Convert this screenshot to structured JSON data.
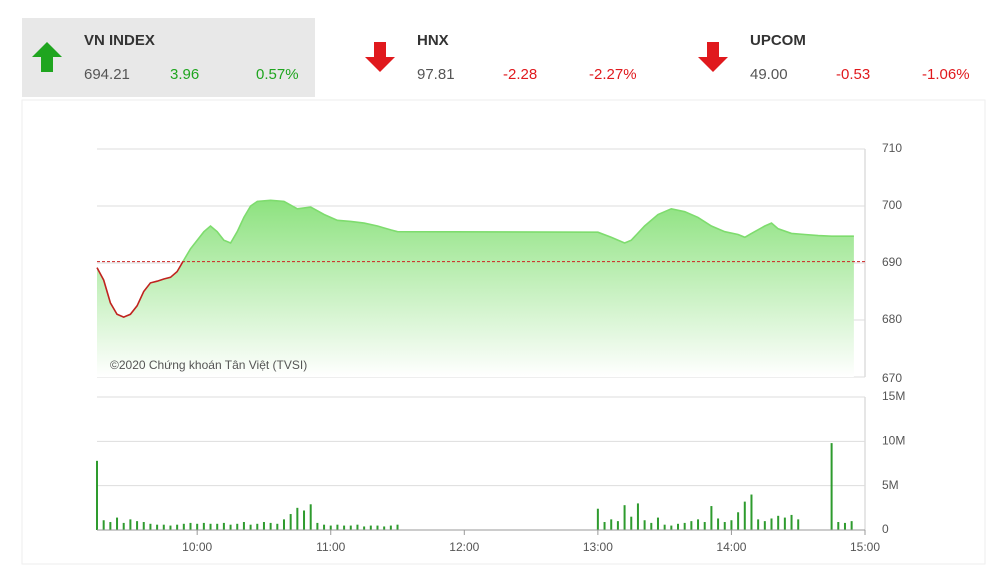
{
  "indices": [
    {
      "name": "VN INDEX",
      "value": "694.21",
      "change": "3.96",
      "percent": "0.57%",
      "direction": "up",
      "highlighted": true
    },
    {
      "name": "HNX",
      "value": "97.81",
      "change": "-2.28",
      "percent": "-2.27%",
      "direction": "down",
      "highlighted": false
    },
    {
      "name": "UPCOM",
      "value": "49.00",
      "change": "-0.53",
      "percent": "-1.06%",
      "direction": "down",
      "highlighted": false
    }
  ],
  "colors": {
    "up": "#1fa51f",
    "down": "#e0191d"
  },
  "chart_data": [
    {
      "type": "area",
      "annotation": "©2020 Chứng khoán Tân Việt (TVSI)",
      "x": [
        "09:15",
        "09:18",
        "09:21",
        "09:24",
        "09:27",
        "09:30",
        "09:33",
        "09:36",
        "09:39",
        "09:42",
        "09:45",
        "09:48",
        "09:51",
        "09:54",
        "09:57",
        "10:00",
        "10:03",
        "10:06",
        "10:09",
        "10:12",
        "10:15",
        "10:18",
        "10:21",
        "10:24",
        "10:27",
        "10:33",
        "10:39",
        "10:45",
        "10:51",
        "10:57",
        "11:03",
        "11:09",
        "11:15",
        "11:21",
        "11:27",
        "11:30",
        "13:00",
        "13:06",
        "13:12",
        "13:15",
        "13:21",
        "13:27",
        "13:33",
        "13:39",
        "13:45",
        "13:51",
        "13:57",
        "14:03",
        "14:06",
        "14:09",
        "14:15",
        "14:18",
        "14:21",
        "14:27",
        "14:33",
        "14:39",
        "14:45",
        "14:55"
      ],
      "values": [
        689.2,
        687,
        683,
        681,
        680.5,
        681,
        682.5,
        685,
        686.5,
        686.8,
        687.2,
        687.5,
        688.5,
        690.5,
        692.5,
        694,
        695.5,
        696.5,
        695.5,
        694,
        693.5,
        695.5,
        698,
        700,
        700.8,
        701,
        700.8,
        699.5,
        699.8,
        698.5,
        697.5,
        697.3,
        697,
        696.5,
        695.8,
        695.5,
        695.4,
        694.5,
        693.5,
        694,
        696.5,
        698.5,
        699.5,
        699,
        698,
        696.5,
        695.5,
        695,
        694.5,
        695.2,
        696.5,
        697,
        696,
        695.2,
        695,
        694.8,
        694.7,
        694.7
      ],
      "reference": 690.25,
      "reference_color": "#cc2222",
      "up_color": "#7edc6e",
      "down_color": "#c0231f",
      "fill_color": "#8de27f",
      "xlim": [
        "09:15",
        "15:00"
      ],
      "ylim": [
        670,
        710
      ],
      "yticks": [
        670,
        680,
        690,
        700,
        710
      ],
      "grid": true
    },
    {
      "type": "bar",
      "color": "#2e9b2e",
      "x": [
        "09:15",
        "09:18",
        "09:21",
        "09:24",
        "09:27",
        "09:30",
        "09:33",
        "09:36",
        "09:39",
        "09:42",
        "09:45",
        "09:48",
        "09:51",
        "09:54",
        "09:57",
        "10:00",
        "10:03",
        "10:06",
        "10:09",
        "10:12",
        "10:15",
        "10:18",
        "10:21",
        "10:24",
        "10:27",
        "10:30",
        "10:33",
        "10:36",
        "10:39",
        "10:42",
        "10:45",
        "10:48",
        "10:51",
        "10:54",
        "10:57",
        "11:00",
        "11:03",
        "11:06",
        "11:09",
        "11:12",
        "11:15",
        "11:18",
        "11:21",
        "11:24",
        "11:27",
        "11:30",
        "13:00",
        "13:03",
        "13:06",
        "13:09",
        "13:12",
        "13:15",
        "13:18",
        "13:21",
        "13:24",
        "13:27",
        "13:30",
        "13:33",
        "13:36",
        "13:39",
        "13:42",
        "13:45",
        "13:48",
        "13:51",
        "13:54",
        "13:57",
        "14:00",
        "14:03",
        "14:06",
        "14:09",
        "14:12",
        "14:15",
        "14:18",
        "14:21",
        "14:24",
        "14:27",
        "14:30",
        "14:45",
        "14:48",
        "14:51",
        "14:54"
      ],
      "values": [
        7800000,
        1100000,
        900000,
        1400000,
        800000,
        1200000,
        1000000,
        900000,
        700000,
        600000,
        600000,
        500000,
        600000,
        700000,
        800000,
        700000,
        800000,
        700000,
        700000,
        800000,
        600000,
        700000,
        900000,
        600000,
        700000,
        900000,
        800000,
        700000,
        1200000,
        1800000,
        2500000,
        2200000,
        2900000,
        800000,
        600000,
        500000,
        600000,
        500000,
        500000,
        600000,
        400000,
        500000,
        500000,
        400000,
        500000,
        600000,
        2400000,
        900000,
        1200000,
        1000000,
        2800000,
        1500000,
        3000000,
        1100000,
        800000,
        1400000,
        600000,
        500000,
        700000,
        800000,
        1000000,
        1200000,
        900000,
        2700000,
        1300000,
        900000,
        1100000,
        2000000,
        3200000,
        4000000,
        1200000,
        1000000,
        1300000,
        1600000,
        1400000,
        1700000,
        1200000,
        9800000,
        900000,
        800000,
        1000000
      ],
      "xlim": [
        "09:15",
        "15:00"
      ],
      "xticks": [
        "10:00",
        "11:00",
        "12:00",
        "13:00",
        "14:00",
        "15:00"
      ],
      "ylim": [
        0,
        15000000
      ],
      "yticks": [
        {
          "value": 0,
          "label": "0"
        },
        {
          "value": 5000000,
          "label": "5M"
        },
        {
          "value": 10000000,
          "label": "10M"
        },
        {
          "value": 15000000,
          "label": "15M"
        }
      ],
      "grid": true
    }
  ]
}
